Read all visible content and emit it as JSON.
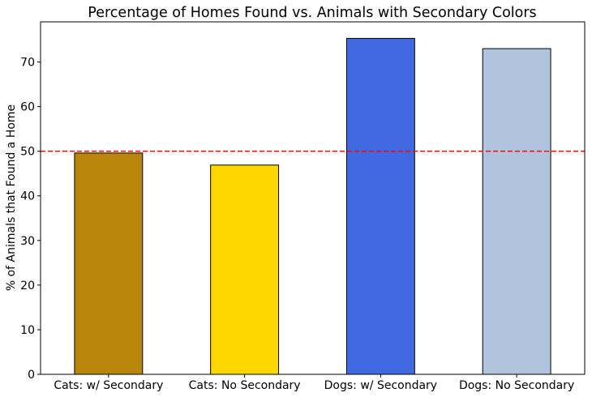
{
  "chart_data": {
    "type": "bar",
    "title": "Percentage of Homes Found vs. Animals with Secondary Colors",
    "xlabel": "",
    "ylabel": "% of Animals that Found a Home",
    "categories": [
      "Cats: w/ Secondary",
      "Cats: No Secondary",
      "Dogs: w/ Secondary",
      "Dogs: No Secondary"
    ],
    "values": [
      49.6,
      46.9,
      75.3,
      73.0
    ],
    "bar_colors": [
      "#b8860b",
      "#ffd700",
      "#4169e1",
      "#b0c4de"
    ],
    "bar_edge_color": "#000000",
    "ylim": [
      0,
      79
    ],
    "yticks": [
      0,
      10,
      20,
      30,
      40,
      50,
      60,
      70
    ],
    "reference_line": {
      "value": 50,
      "color": "#ff0000",
      "style": "dashed"
    },
    "grid": false,
    "legend": "none"
  }
}
